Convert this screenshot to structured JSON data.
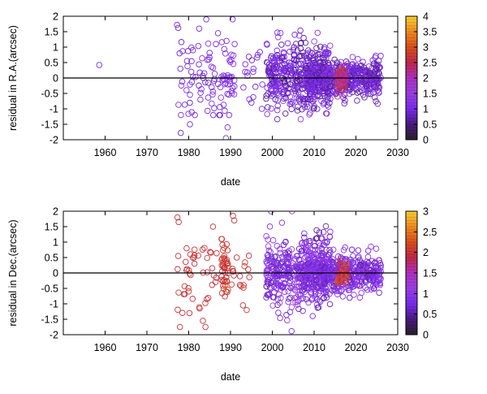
{
  "chart_data": [
    {
      "type": "scatter",
      "title": "",
      "xlabel": "date",
      "ylabel": "residual in R.A.(arcsec)",
      "xlim": [
        1950,
        2030
      ],
      "ylim": [
        -2,
        2
      ],
      "xticks": [
        "1960",
        "1970",
        "1980",
        "1990",
        "2000",
        "2010",
        "2020",
        "2030"
      ],
      "yticks": [
        "2",
        "1.5",
        "1",
        "0.5",
        "0",
        "-0.5",
        "-1",
        "-1.5",
        "-2"
      ],
      "reference_line_y": 0,
      "marker": "open-circle",
      "colorbar": {
        "min": 0,
        "max": 4,
        "ticks": [
          "4",
          "3.5",
          "3",
          "2.5",
          "2",
          "1.5",
          "1",
          "0.5",
          "0"
        ],
        "colors": [
          "#2a1f2a",
          "#4a1a80",
          "#7a2bf0",
          "#9a3fe0",
          "#b02fc0",
          "#c02848",
          "#d8501a",
          "#f08a20",
          "#f8d030"
        ]
      },
      "grid": false,
      "legend": "none",
      "points": [
        {
          "x": 1958.6,
          "y": 0.42,
          "c": 1.0
        },
        {
          "x": 1977.2,
          "y": 1.72,
          "c": 0.9
        },
        {
          "x": 1977.5,
          "y": 1.62,
          "c": 0.9
        },
        {
          "x": 1977.8,
          "y": 0.8,
          "c": 0.9
        },
        {
          "x": 1978.0,
          "y": 0.3,
          "c": 0.9
        },
        {
          "x": 1978.1,
          "y": -1.78,
          "c": 0.9
        },
        {
          "x": 1979.6,
          "y": 0.55,
          "c": 0.9
        },
        {
          "x": 1980.3,
          "y": -1.5,
          "c": 0.9
        },
        {
          "x": 1980.6,
          "y": 0.2,
          "c": 0.9
        },
        {
          "x": 1981.0,
          "y": 0.9,
          "c": 0.9
        },
        {
          "x": 1982.5,
          "y": 1.6,
          "c": 0.9
        },
        {
          "x": 1982.8,
          "y": -0.7,
          "c": 0.9
        },
        {
          "x": 1983.5,
          "y": 0.0,
          "c": 0.9
        },
        {
          "x": 1984.2,
          "y": 1.9,
          "c": 0.9
        },
        {
          "x": 1984.8,
          "y": 0.6,
          "c": 0.9
        },
        {
          "x": 1985.5,
          "y": -0.3,
          "c": 0.9
        },
        {
          "x": 1986.5,
          "y": 1.1,
          "c": 0.9
        },
        {
          "x": 1987.5,
          "y": -1.2,
          "c": 0.9
        },
        {
          "x": 1988.6,
          "y": -0.2,
          "c": 1.2
        },
        {
          "x": 1988.9,
          "y": -1.95,
          "c": 1.2
        },
        {
          "x": 1989.3,
          "y": -1.6,
          "c": 1.2
        },
        {
          "x": 1990.5,
          "y": 1.9,
          "c": 1.0
        },
        {
          "x": 1991.0,
          "y": 1.1,
          "c": 1.0
        },
        {
          "x": 1993.5,
          "y": 0.2,
          "c": 1.0
        },
        {
          "x": 1995.0,
          "y": -0.8,
          "c": 1.0
        },
        {
          "x": 1995.5,
          "y": 0.3,
          "c": 1.0
        },
        {
          "x": 1996.5,
          "y": 0.75,
          "c": 1.0
        }
      ],
      "clusters": [
        {
          "x0": 1977,
          "x1": 1990,
          "ymin": -1.2,
          "ymax": 1.5,
          "n": 55,
          "cmin": 0.8,
          "cmax": 1.2,
          "spread": 0.8
        },
        {
          "x0": 1987.5,
          "x1": 1991,
          "ymin": -1.8,
          "ymax": 1.2,
          "n": 35,
          "cmin": 1.0,
          "cmax": 1.3,
          "spread": 0.6
        },
        {
          "x0": 1993,
          "x1": 1998,
          "ymin": -1.0,
          "ymax": 0.9,
          "n": 14,
          "cmin": 0.9,
          "cmax": 1.1,
          "spread": 0.5
        },
        {
          "x0": 1998.5,
          "x1": 2014,
          "ymin": -2.0,
          "ymax": 2.0,
          "n": 420,
          "cmin": 0.5,
          "cmax": 1.4,
          "spread": 0.55
        },
        {
          "x0": 2008,
          "x1": 2026,
          "ymin": -1.5,
          "ymax": 1.3,
          "n": 520,
          "cmin": 0.5,
          "cmax": 1.4,
          "spread": 0.3
        },
        {
          "x0": 2015.5,
          "x1": 2017.5,
          "ymin": -0.6,
          "ymax": 0.4,
          "n": 45,
          "cmin": 1.9,
          "cmax": 2.9,
          "spread": 0.25
        }
      ]
    },
    {
      "type": "scatter",
      "title": "",
      "xlabel": "date",
      "ylabel": "residual in Dec.(arcsec)",
      "xlim": [
        1950,
        2030
      ],
      "ylim": [
        -2,
        2
      ],
      "xticks": [
        "1960",
        "1970",
        "1980",
        "1990",
        "2000",
        "2010",
        "2020",
        "2030"
      ],
      "yticks": [
        "2",
        "1.5",
        "1",
        "0.5",
        "0",
        "-0.5",
        "-1",
        "-1.5",
        "-2"
      ],
      "reference_line_y": 0,
      "marker": "open-circle",
      "colorbar": {
        "min": 0,
        "max": 3,
        "ticks": [
          "3",
          "2.5",
          "2",
          "1.5",
          "1",
          "0.5",
          "0"
        ],
        "colors": [
          "#2a1f2a",
          "#4a1a80",
          "#7a2bf0",
          "#9a3fe0",
          "#b02fc0",
          "#c02848",
          "#d8501a",
          "#f08a20",
          "#f8d030"
        ]
      },
      "grid": false,
      "legend": "none",
      "points": [
        {
          "x": 1977.3,
          "y": 1.8,
          "c": 2.0
        },
        {
          "x": 1977.6,
          "y": 1.65,
          "c": 2.0
        },
        {
          "x": 1977.5,
          "y": 0.55,
          "c": 2.0
        },
        {
          "x": 1977.9,
          "y": -1.75,
          "c": 2.0
        },
        {
          "x": 1979.5,
          "y": 0.8,
          "c": 2.0
        },
        {
          "x": 1980.0,
          "y": -0.6,
          "c": 2.0
        },
        {
          "x": 1982.6,
          "y": -1.15,
          "c": 2.0
        },
        {
          "x": 1983.4,
          "y": -1.55,
          "c": 2.0
        },
        {
          "x": 1984.0,
          "y": -1.75,
          "c": 2.0
        },
        {
          "x": 1985.8,
          "y": 1.5,
          "c": 2.0
        },
        {
          "x": 1990.6,
          "y": 1.85,
          "c": 2.0
        },
        {
          "x": 1990.9,
          "y": 1.7,
          "c": 2.0
        },
        {
          "x": 1991.5,
          "y": 0.5,
          "c": 2.0
        },
        {
          "x": 1993.0,
          "y": -1.05,
          "c": 2.0
        }
      ],
      "clusters": [
        {
          "x0": 1977,
          "x1": 1987,
          "ymin": -1.3,
          "ymax": 1.2,
          "n": 40,
          "cmin": 1.9,
          "cmax": 2.1,
          "spread": 0.7
        },
        {
          "x0": 1987.8,
          "x1": 1989.5,
          "ymin": -1.2,
          "ymax": 1.1,
          "n": 45,
          "cmin": 1.9,
          "cmax": 2.2,
          "spread": 0.5
        },
        {
          "x0": 1990,
          "x1": 1995,
          "ymin": -1.2,
          "ymax": 1.0,
          "n": 16,
          "cmin": 1.9,
          "cmax": 2.1,
          "spread": 0.6
        },
        {
          "x0": 1998.5,
          "x1": 2014,
          "ymin": -2.0,
          "ymax": 2.0,
          "n": 430,
          "cmin": 0.5,
          "cmax": 1.2,
          "spread": 0.6
        },
        {
          "x0": 2008,
          "x1": 2026,
          "ymin": -1.4,
          "ymax": 1.4,
          "n": 520,
          "cmin": 0.5,
          "cmax": 1.2,
          "spread": 0.3
        },
        {
          "x0": 2015.5,
          "x1": 2018,
          "ymin": -0.3,
          "ymax": 0.4,
          "n": 40,
          "cmin": 1.7,
          "cmax": 2.4,
          "spread": 0.2
        }
      ]
    }
  ]
}
